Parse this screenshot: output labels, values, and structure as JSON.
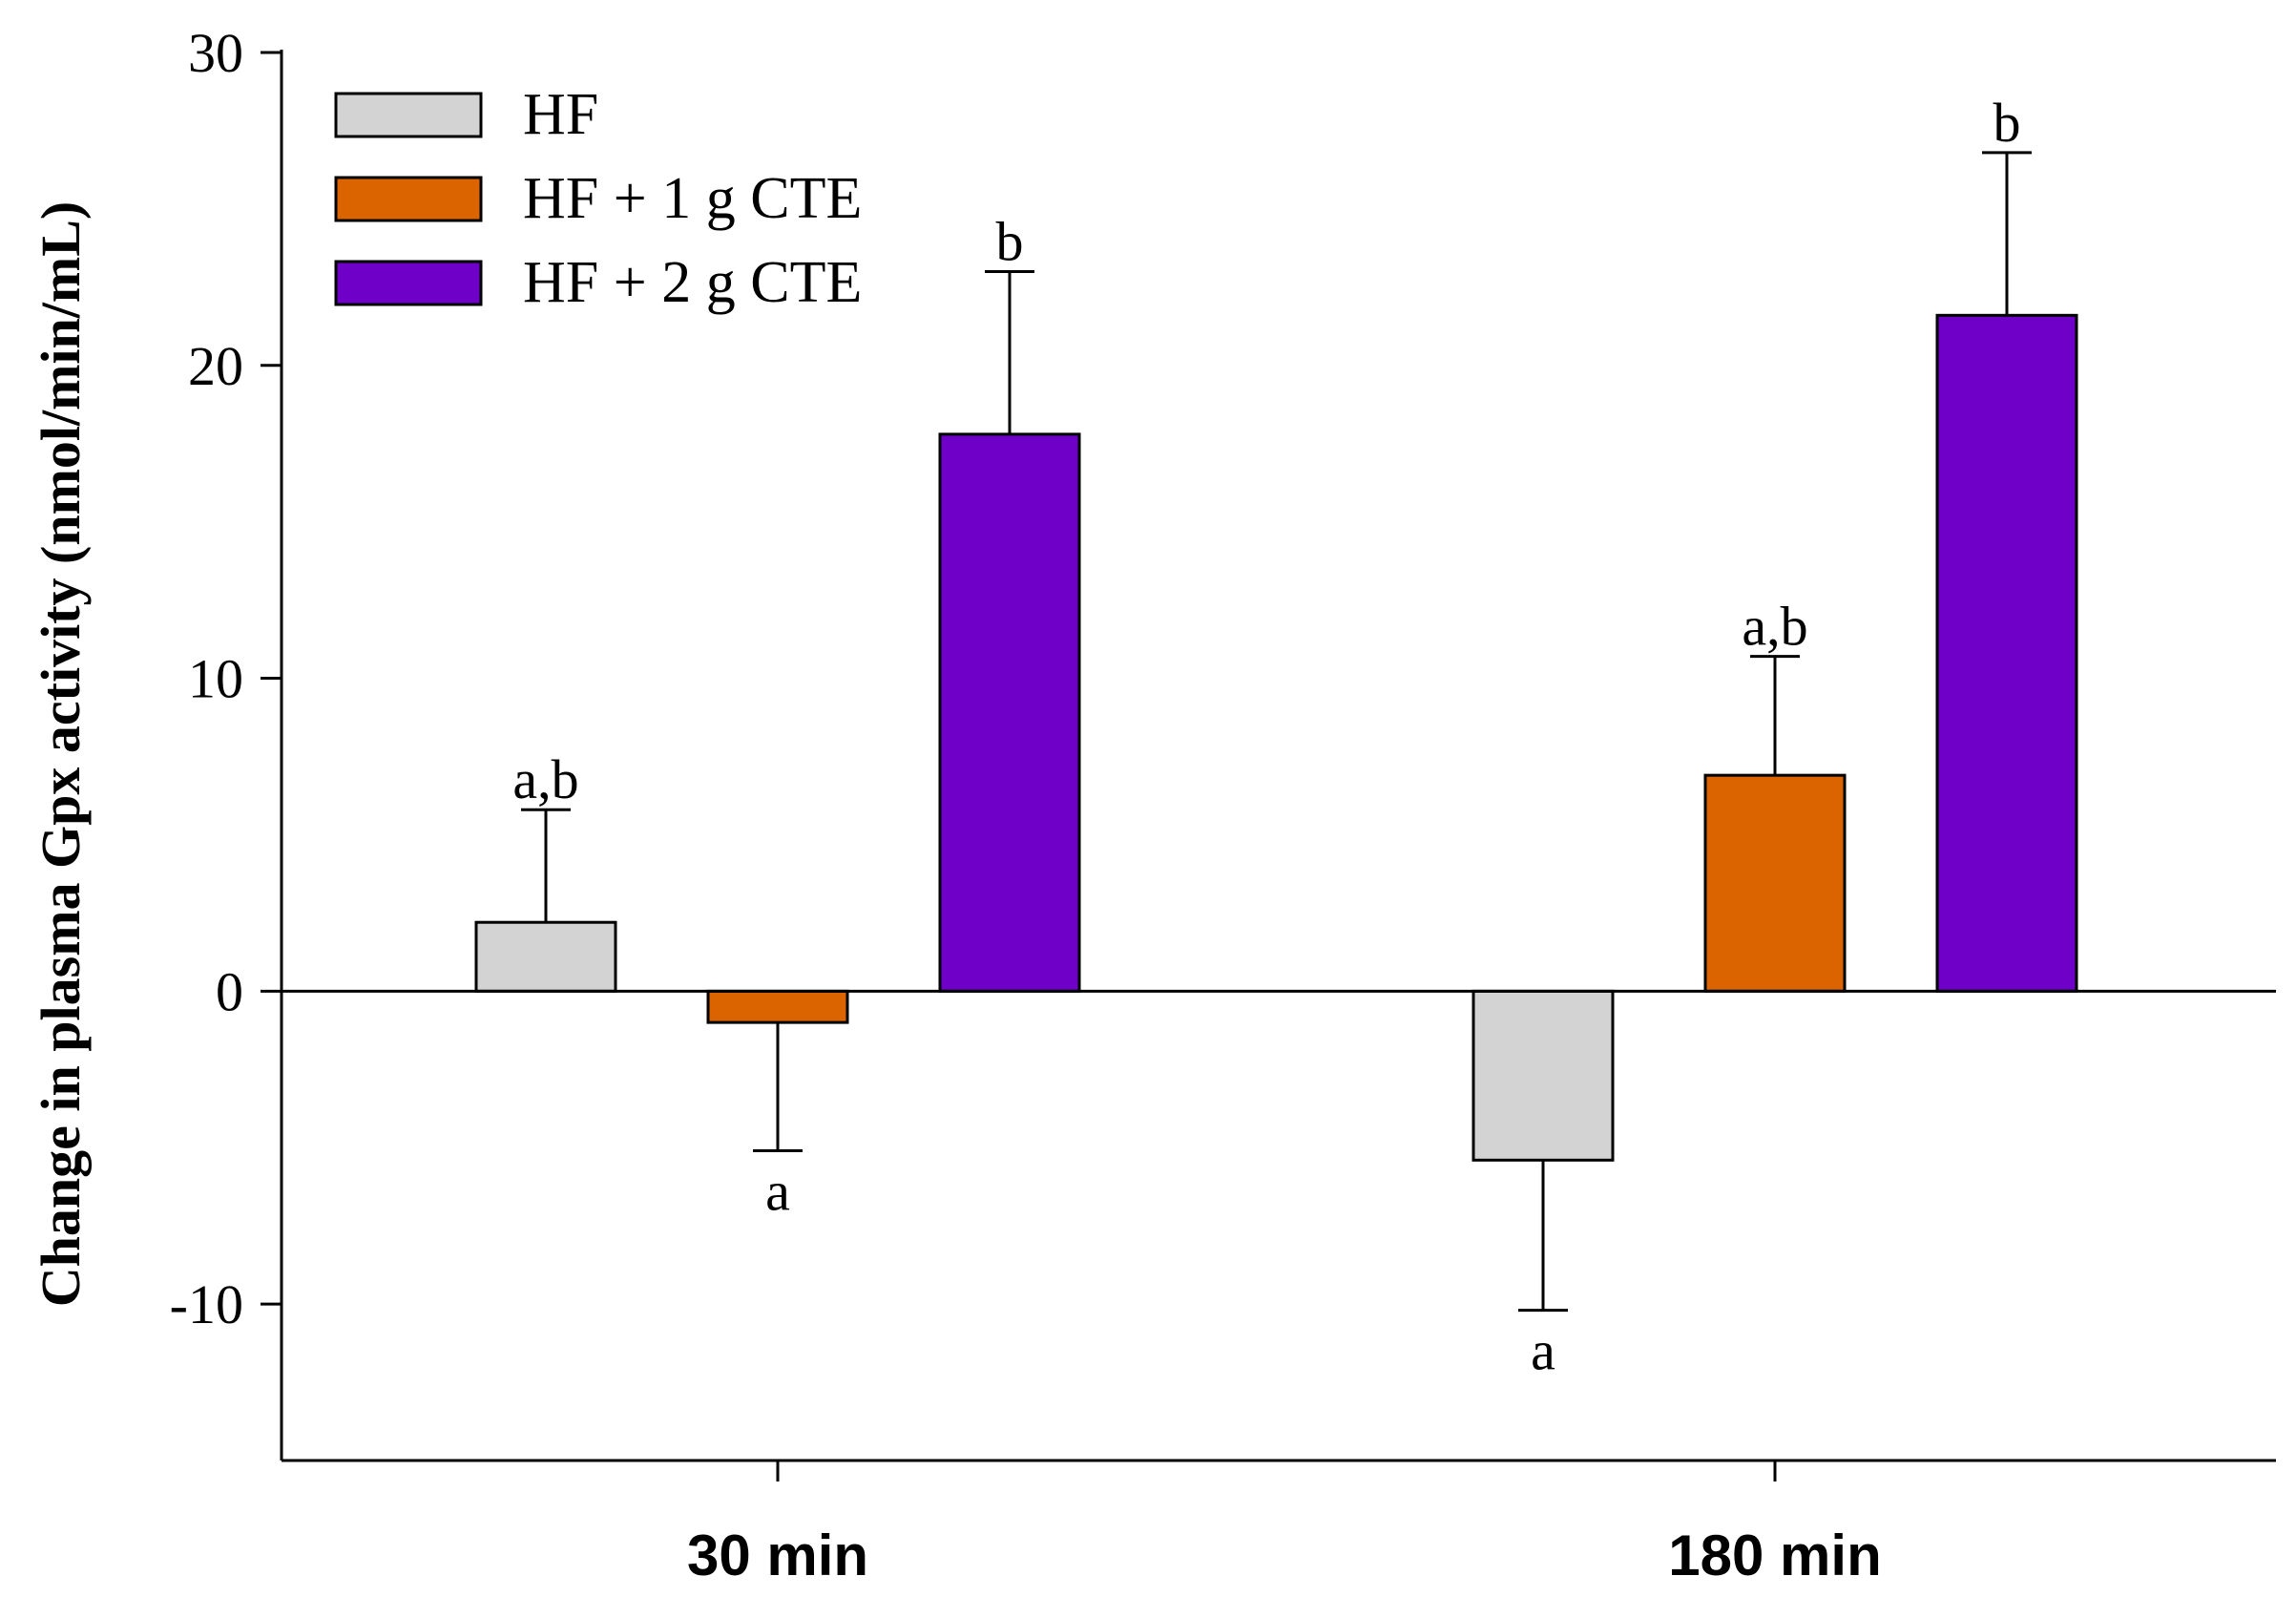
{
  "chart_data": {
    "type": "bar",
    "title": "",
    "xlabel": "",
    "ylabel": "Change in plasma Gpx activity (nmol/min/mL)",
    "ylim": [
      -15,
      30
    ],
    "yticks": [
      -10,
      0,
      10,
      20,
      30
    ],
    "ytick_labels": [
      "-10",
      "0",
      "10",
      "20",
      "30"
    ],
    "categories": [
      "30 min",
      "180 min"
    ],
    "legend_position": "top-left",
    "series": [
      {
        "name": "HF",
        "color": "#d3d3d3",
        "values": [
          2.2,
          -5.4
        ],
        "errors": [
          3.6,
          4.8
        ],
        "significance": [
          "a,b",
          "a"
        ]
      },
      {
        "name": "HF + 1 g CTE",
        "color": "#dc6400",
        "values": [
          -1.0,
          6.9
        ],
        "errors": [
          4.1,
          3.8
        ],
        "significance": [
          "a",
          "a,b"
        ]
      },
      {
        "name": "HF + 2 g CTE",
        "color": "#6e00c8",
        "values": [
          17.8,
          21.6
        ],
        "errors": [
          5.2,
          5.2
        ],
        "significance": [
          "b",
          "b"
        ]
      }
    ]
  }
}
